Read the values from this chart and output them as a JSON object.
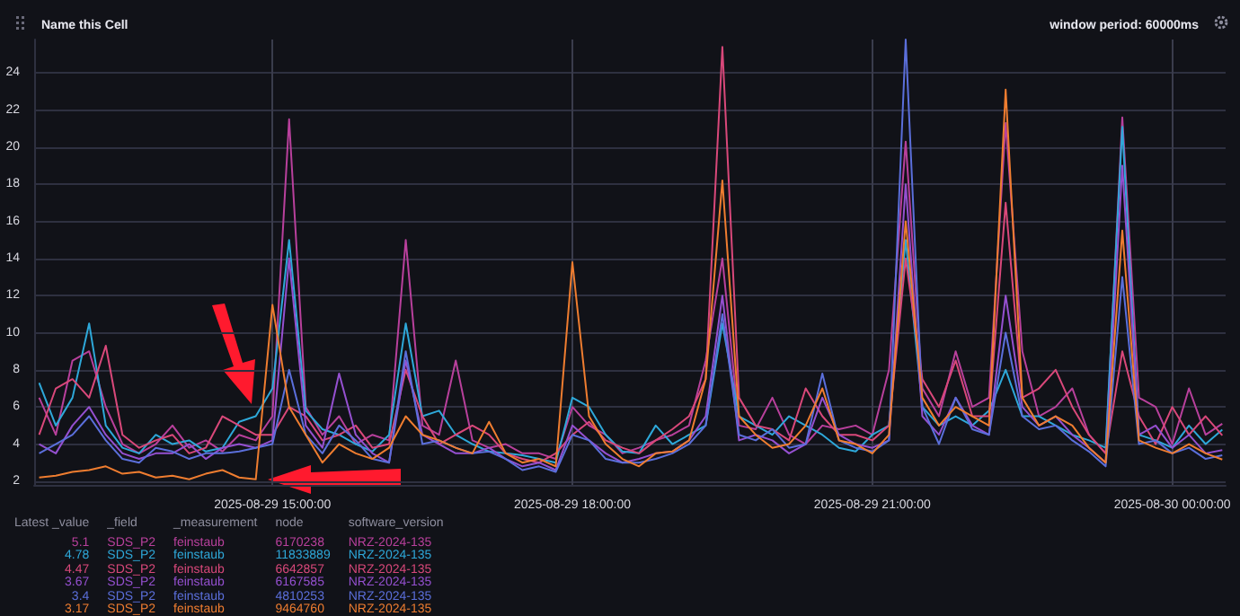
{
  "chart_data": {
    "type": "line",
    "title": "Name this Cell",
    "subtitle": "window period: 60000ms",
    "x": [
      "2025-08-29T12:40",
      "2025-08-29T12:50",
      "2025-08-29T13:00",
      "2025-08-29T13:10",
      "2025-08-29T13:20",
      "2025-08-29T13:30",
      "2025-08-29T13:40",
      "2025-08-29T13:50",
      "2025-08-29T14:00",
      "2025-08-29T14:10",
      "2025-08-29T14:20",
      "2025-08-29T14:30",
      "2025-08-29T14:40",
      "2025-08-29T14:50",
      "2025-08-29T15:00",
      "2025-08-29T15:10",
      "2025-08-29T15:20",
      "2025-08-29T15:30",
      "2025-08-29T15:40",
      "2025-08-29T15:50",
      "2025-08-29T16:00",
      "2025-08-29T16:10",
      "2025-08-29T16:20",
      "2025-08-29T16:30",
      "2025-08-29T16:40",
      "2025-08-29T16:50",
      "2025-08-29T17:00",
      "2025-08-29T17:10",
      "2025-08-29T17:20",
      "2025-08-29T17:30",
      "2025-08-29T17:40",
      "2025-08-29T17:50",
      "2025-08-29T18:00",
      "2025-08-29T18:10",
      "2025-08-29T18:20",
      "2025-08-29T18:30",
      "2025-08-29T18:40",
      "2025-08-29T18:50",
      "2025-08-29T19:00",
      "2025-08-29T19:10",
      "2025-08-29T19:20",
      "2025-08-29T19:30",
      "2025-08-29T19:40",
      "2025-08-29T19:50",
      "2025-08-29T20:00",
      "2025-08-29T20:10",
      "2025-08-29T20:20",
      "2025-08-29T20:30",
      "2025-08-29T20:40",
      "2025-08-29T20:50",
      "2025-08-29T21:00",
      "2025-08-29T21:10",
      "2025-08-29T21:20",
      "2025-08-29T21:30",
      "2025-08-29T21:40",
      "2025-08-29T21:50",
      "2025-08-29T22:00",
      "2025-08-29T22:10",
      "2025-08-29T22:20",
      "2025-08-29T22:30",
      "2025-08-29T22:40",
      "2025-08-29T22:50",
      "2025-08-29T23:00",
      "2025-08-29T23:10",
      "2025-08-29T23:20",
      "2025-08-29T23:30",
      "2025-08-29T23:40",
      "2025-08-29T23:50",
      "2025-08-30T00:00",
      "2025-08-30T00:10",
      "2025-08-30T00:20",
      "2025-08-30T00:30"
    ],
    "series": [
      {
        "name": "6170238",
        "color": "#b8409c",
        "values": [
          6.5,
          4.5,
          8.5,
          9,
          6,
          4,
          3.5,
          4,
          5,
          3.8,
          4.2,
          3.6,
          4.5,
          4.2,
          5.5,
          21.5,
          6,
          4.5,
          5.5,
          4,
          4.5,
          4.2,
          15,
          5,
          4.5,
          8.5,
          4.2,
          3.8,
          4,
          3.5,
          3.5,
          3.2,
          6,
          5,
          4.5,
          3.5,
          3.8,
          4.2,
          4.5,
          5,
          8.5,
          14,
          5,
          4.8,
          6.5,
          4.5,
          4,
          5,
          4.8,
          5,
          4.5,
          8,
          20.3,
          7,
          5.5,
          9,
          6,
          6.5,
          21.3,
          9,
          5.5,
          6,
          7,
          4.5,
          3.5,
          21.6,
          6.5,
          6,
          4,
          7,
          4.5,
          5.1
        ]
      },
      {
        "name": "11833889",
        "color": "#2ea8d9",
        "values": [
          7.3,
          5,
          6.5,
          10.5,
          5,
          3.8,
          3.5,
          4.5,
          4,
          4.2,
          3.6,
          3.8,
          5.2,
          5.5,
          7,
          15,
          5.8,
          4.8,
          4.5,
          4,
          3.6,
          4.5,
          10.5,
          5.5,
          5.8,
          4.5,
          4,
          3.6,
          3.5,
          3.4,
          3.2,
          3,
          6.5,
          6,
          4.5,
          3.6,
          3.5,
          5,
          4,
          4.5,
          5,
          10.5,
          5.5,
          5,
          4.5,
          5.5,
          5,
          4.5,
          3.8,
          3.6,
          4.5,
          5,
          15,
          6,
          5,
          5.5,
          5,
          5.8,
          8,
          5.5,
          5.5,
          5,
          4.5,
          4.2,
          3.8,
          21.1,
          4.5,
          4.2,
          3.8,
          5,
          4,
          4.78
        ]
      },
      {
        "name": "6642857",
        "color": "#d9487a",
        "values": [
          4.5,
          7,
          7.5,
          6.5,
          9.3,
          4.5,
          3.8,
          4.2,
          4.5,
          3.5,
          3.8,
          5.5,
          5,
          4.5,
          4.5,
          6,
          5.5,
          4.2,
          4.5,
          5,
          3.8,
          4,
          8,
          5.5,
          4,
          4.5,
          5,
          4.5,
          3.5,
          3.2,
          3,
          3.5,
          4.5,
          5.2,
          4.2,
          3.8,
          3.5,
          4.2,
          4.8,
          5.5,
          7.5,
          25.4,
          6.5,
          5,
          4.8,
          4.2,
          7,
          5.5,
          4.5,
          4.5,
          4.2,
          5,
          14,
          7.5,
          6,
          8.5,
          5.5,
          5.5,
          17,
          6.5,
          7,
          8,
          6,
          4.5,
          3.5,
          9,
          5.5,
          4,
          6,
          4.5,
          5.5,
          4.47
        ]
      },
      {
        "name": "6167585",
        "color": "#9550d0",
        "values": [
          4,
          3.5,
          5,
          6,
          4.5,
          3.5,
          3.2,
          3.5,
          3.5,
          4,
          3.2,
          3.8,
          4,
          3.8,
          4.2,
          14,
          5,
          3.8,
          7.8,
          4.5,
          3.5,
          3,
          8.5,
          4.5,
          4,
          3.5,
          3.5,
          3.8,
          3.2,
          2.8,
          3,
          2.6,
          5,
          4.2,
          3.5,
          3,
          3.2,
          3.5,
          3.6,
          4.2,
          5.5,
          12,
          4.2,
          4.5,
          4.2,
          3.5,
          4,
          6.5,
          4.5,
          4,
          3.8,
          4.2,
          18,
          5.5,
          4.5,
          6.5,
          5,
          4.5,
          12,
          6,
          5,
          5.5,
          4.5,
          3.8,
          3,
          19,
          4.5,
          5,
          3.8,
          4.5,
          3.5,
          3.67
        ]
      },
      {
        "name": "4810253",
        "color": "#5b6fdb",
        "values": [
          3.5,
          4,
          4.5,
          5.5,
          4.2,
          3.2,
          3,
          3.8,
          3.6,
          3.2,
          3.5,
          3.5,
          3.6,
          3.8,
          4,
          8,
          4.5,
          3.5,
          5,
          4.2,
          3.2,
          3,
          9,
          4,
          4.2,
          3.8,
          3.5,
          3.6,
          3.2,
          2.6,
          2.8,
          2.5,
          4.5,
          4.2,
          3.2,
          3,
          3,
          3.2,
          3.5,
          4,
          5,
          11,
          4.5,
          4.2,
          4.8,
          3.8,
          4,
          7.8,
          4.2,
          3.8,
          3.6,
          4.2,
          25.8,
          6,
          4,
          6.5,
          4.8,
          4.5,
          10,
          5.5,
          4.8,
          5,
          4.2,
          3.6,
          2.8,
          13,
          4,
          4.2,
          3.5,
          3.8,
          3.2,
          3.4
        ]
      },
      {
        "name": "9464760",
        "color": "#ef7d30",
        "values": [
          2.2,
          2.3,
          2.5,
          2.6,
          2.8,
          2.4,
          2.5,
          2.2,
          2.3,
          2.1,
          2.4,
          2.6,
          2.2,
          2.1,
          11.5,
          6,
          4.5,
          3,
          4,
          3.5,
          3.2,
          3.8,
          5.5,
          4.5,
          4.2,
          3.8,
          3.5,
          5.2,
          3.5,
          3,
          3.2,
          2.8,
          13.8,
          5.5,
          4,
          3.2,
          2.8,
          3.5,
          3.6,
          4.2,
          7.5,
          18.2,
          5.5,
          4.5,
          3.8,
          4,
          5,
          7,
          4.2,
          4,
          3.5,
          4.5,
          16,
          6.5,
          5,
          6,
          5.5,
          5,
          23.1,
          6.5,
          5,
          5.5,
          5,
          3.8,
          3,
          15.5,
          4.2,
          3.8,
          3.5,
          4,
          3.5,
          3.17
        ]
      }
    ],
    "xlim": [
      "2025-08-29T12:37",
      "2025-08-30T00:32"
    ],
    "xticks": [
      {
        "value": "2025-08-29T15:00",
        "label": "2025-08-29 15:00:00"
      },
      {
        "value": "2025-08-29T18:00",
        "label": "2025-08-29 18:00:00"
      },
      {
        "value": "2025-08-29T21:00",
        "label": "2025-08-29 21:00:00"
      },
      {
        "value": "2025-08-30T00:00",
        "label": "2025-08-30 00:00:00"
      }
    ],
    "ylim": [
      1.8,
      25.8
    ],
    "yticks": [
      2,
      4,
      6,
      8,
      10,
      12,
      14,
      16,
      18,
      20,
      22,
      24
    ],
    "grid": true,
    "marker": "none",
    "legend": "bottom",
    "annotations": [
      "Latest _value",
      "_field",
      "_measurement",
      "node",
      "software_version",
      "5.1",
      "SDS_P2",
      "feinstaub",
      "NRZ-2024-135",
      "4.78",
      "SDS_P2",
      "feinstaub",
      "NRZ-2024-135",
      "4.47",
      "SDS_P2",
      "feinstaub",
      "NRZ-2024-135",
      "3.67",
      "SDS_P2",
      "feinstaub",
      "NRZ-2024-135",
      "3.4",
      "SDS_P2",
      "feinstaub",
      "NRZ-2024-135",
      "3.17",
      "SDS_P2",
      "feinstaub",
      "NRZ-2024-135"
    ]
  }
}
